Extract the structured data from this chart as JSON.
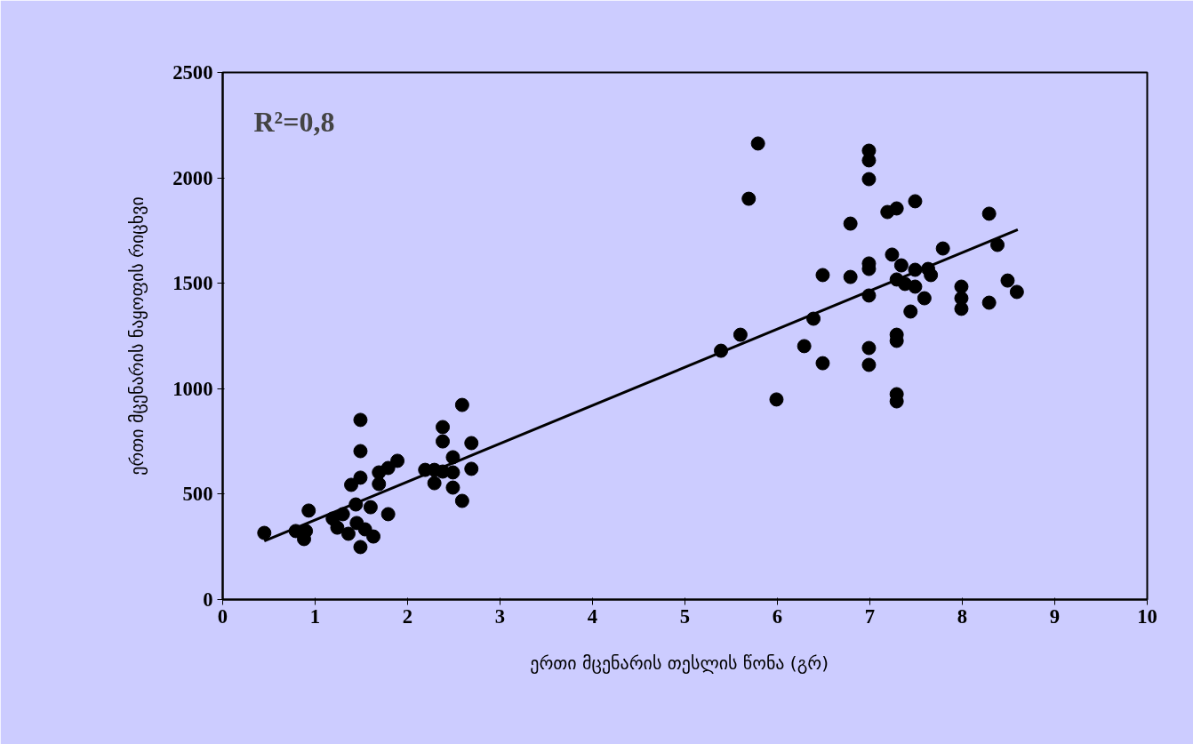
{
  "chart_data": {
    "type": "scatter",
    "xlabel": "ერთი მცენარის თესლის წონა   (გრ)",
    "ylabel": "ერთი მცენარის ნაყოფის რიცხვი",
    "annotations": [
      "R²=0,8"
    ],
    "xlim": [
      0,
      10
    ],
    "ylim": [
      0,
      2500
    ],
    "xticks": [
      0,
      1,
      2,
      3,
      4,
      5,
      6,
      7,
      8,
      9,
      10
    ],
    "yticks": [
      0,
      500,
      1000,
      1500,
      2000,
      2500
    ],
    "grid": false,
    "marker": "circle",
    "series": [
      {
        "color": "#000000",
        "x": [
          0.45,
          0.79,
          0.88,
          0.93,
          0.9,
          1.19,
          1.24,
          1.3,
          1.36,
          1.39,
          1.45,
          1.44,
          1.49,
          1.49,
          1.49,
          1.49,
          1.54,
          1.6,
          1.63,
          1.69,
          1.69,
          1.79,
          1.79,
          1.89,
          2.19,
          2.29,
          2.29,
          2.38,
          2.38,
          2.38,
          2.49,
          2.49,
          2.49,
          2.59,
          2.59,
          2.69,
          2.69,
          5.39,
          5.6,
          5.69,
          5.79,
          5.99,
          6.29,
          6.39,
          6.49,
          6.49,
          6.79,
          6.79,
          6.99,
          6.99,
          6.99,
          6.99,
          6.99,
          6.99,
          6.99,
          6.99,
          7.19,
          7.24,
          7.29,
          7.29,
          7.29,
          7.29,
          7.29,
          7.29,
          7.34,
          7.38,
          7.44,
          7.49,
          7.49,
          7.49,
          7.59,
          7.63,
          7.66,
          7.79,
          7.99,
          7.99,
          7.99,
          8.29,
          8.29,
          8.38,
          8.49,
          8.59
        ],
        "values": [
          316,
          325,
          287,
          422,
          325,
          384,
          341,
          405,
          312,
          544,
          363,
          451,
          852,
          704,
          578,
          249,
          333,
          438,
          299,
          603,
          548,
          405,
          624,
          658,
          615,
          615,
          552,
          818,
          750,
          607,
          675,
          603,
          531,
          468,
          923,
          742,
          620,
          1180,
          1256,
          1901,
          2163,
          949,
          1202,
          1332,
          1539,
          1121,
          1530,
          1783,
          2129,
          2083,
          1994,
          1594,
          1568,
          1442,
          1193,
          1113,
          1838,
          1636,
          1855,
          1518,
          1256,
          1227,
          974,
          940,
          1585,
          1497,
          1366,
          1889,
          1564,
          1484,
          1429,
          1568,
          1539,
          1665,
          1484,
          1429,
          1379,
          1830,
          1408,
          1682,
          1513,
          1459
        ]
      },
      {
        "type": "line",
        "color": "#000000",
        "marker": "none",
        "x": [
          0.45,
          8.6
        ],
        "values": [
          278,
          1754
        ]
      }
    ]
  }
}
